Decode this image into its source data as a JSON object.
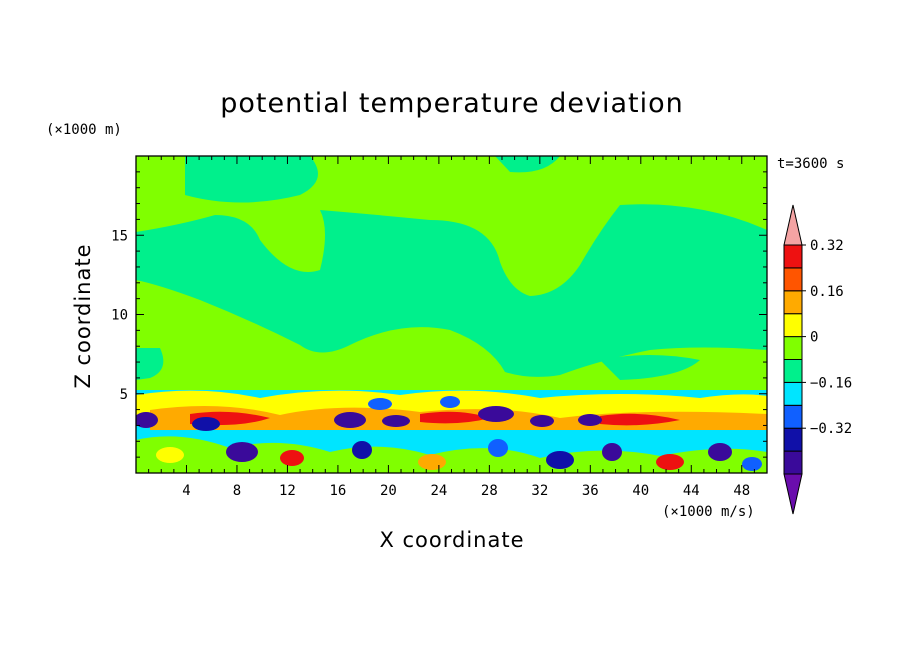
{
  "chart_data": {
    "type": "heatmap",
    "title": "potential temperature deviation",
    "xlabel": "X coordinate",
    "ylabel": "Z coordinate",
    "x_unit": "(×1000 m/s)",
    "y_unit": "(×1000 m)",
    "time_label": "t=3600 s",
    "xlim": [
      0,
      50
    ],
    "ylim": [
      0,
      20
    ],
    "x_ticks": [
      4,
      8,
      12,
      16,
      20,
      24,
      28,
      32,
      36,
      40,
      44,
      48
    ],
    "y_ticks": [
      5,
      10,
      15
    ],
    "colorbar": {
      "levels": [
        -0.48,
        -0.4,
        -0.32,
        -0.24,
        -0.16,
        -0.08,
        0,
        0.08,
        0.16,
        0.24,
        0.32,
        0.4
      ],
      "labels": [
        0.32,
        0.16,
        0,
        -0.16,
        -0.32
      ],
      "label_text": [
        "0.32",
        "0.16",
        "0",
        "−0.16",
        "−0.32"
      ],
      "colors": [
        "#6a0dad",
        "#3a0a9a",
        "#1010a8",
        "#1060ff",
        "#00e5ff",
        "#00f08c",
        "#80ff00",
        "#ffff00",
        "#ffaa00",
        "#ff5500",
        "#ee1111",
        "#f4a3a3"
      ]
    }
  }
}
